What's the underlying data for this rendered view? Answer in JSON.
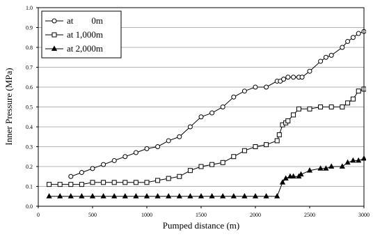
{
  "chart_data": {
    "type": "line",
    "title": "",
    "xlabel": "Pumped distance (m)",
    "ylabel": "Inner Pressure (MPa)",
    "xlim": [
      0,
      3000
    ],
    "ylim": [
      0,
      1.0
    ],
    "x_ticks": [
      "0",
      "500",
      "1000",
      "1500",
      "2000",
      "2500",
      "3000"
    ],
    "y_ticks": [
      "0.0",
      "0.1",
      "0.2",
      "0.3",
      "0.4",
      "0.5",
      "0.6",
      "0.7",
      "0.8",
      "0.9",
      "1.0"
    ],
    "grid": "horizontal",
    "legend_position": "top-left",
    "series": [
      {
        "name": "at        0m",
        "marker": "circle-open",
        "color": "#000000",
        "points": [
          [
            300,
            0.15
          ],
          [
            400,
            0.17
          ],
          [
            500,
            0.19
          ],
          [
            600,
            0.21
          ],
          [
            700,
            0.23
          ],
          [
            800,
            0.25
          ],
          [
            900,
            0.27
          ],
          [
            1000,
            0.29
          ],
          [
            1100,
            0.3
          ],
          [
            1200,
            0.33
          ],
          [
            1300,
            0.35
          ],
          [
            1400,
            0.4
          ],
          [
            1500,
            0.45
          ],
          [
            1600,
            0.47
          ],
          [
            1700,
            0.5
          ],
          [
            1800,
            0.55
          ],
          [
            1900,
            0.58
          ],
          [
            2000,
            0.6
          ],
          [
            2100,
            0.6
          ],
          [
            2200,
            0.63
          ],
          [
            2230,
            0.63
          ],
          [
            2260,
            0.64
          ],
          [
            2300,
            0.65
          ],
          [
            2350,
            0.65
          ],
          [
            2400,
            0.65
          ],
          [
            2430,
            0.65
          ],
          [
            2500,
            0.68
          ],
          [
            2600,
            0.73
          ],
          [
            2650,
            0.75
          ],
          [
            2700,
            0.76
          ],
          [
            2800,
            0.8
          ],
          [
            2850,
            0.83
          ],
          [
            2900,
            0.85
          ],
          [
            2950,
            0.87
          ],
          [
            3000,
            0.88
          ]
        ]
      },
      {
        "name": "at 1,000m",
        "marker": "square-open",
        "color": "#000000",
        "points": [
          [
            100,
            0.11
          ],
          [
            200,
            0.11
          ],
          [
            300,
            0.11
          ],
          [
            400,
            0.11
          ],
          [
            500,
            0.12
          ],
          [
            600,
            0.12
          ],
          [
            700,
            0.12
          ],
          [
            800,
            0.12
          ],
          [
            900,
            0.12
          ],
          [
            1000,
            0.12
          ],
          [
            1100,
            0.13
          ],
          [
            1200,
            0.14
          ],
          [
            1300,
            0.15
          ],
          [
            1400,
            0.18
          ],
          [
            1500,
            0.2
          ],
          [
            1600,
            0.21
          ],
          [
            1700,
            0.22
          ],
          [
            1800,
            0.25
          ],
          [
            1900,
            0.28
          ],
          [
            2000,
            0.3
          ],
          [
            2100,
            0.31
          ],
          [
            2200,
            0.33
          ],
          [
            2220,
            0.36
          ],
          [
            2250,
            0.41
          ],
          [
            2280,
            0.42
          ],
          [
            2300,
            0.43
          ],
          [
            2350,
            0.46
          ],
          [
            2400,
            0.49
          ],
          [
            2500,
            0.49
          ],
          [
            2600,
            0.5
          ],
          [
            2700,
            0.5
          ],
          [
            2800,
            0.5
          ],
          [
            2850,
            0.52
          ],
          [
            2900,
            0.54
          ],
          [
            2950,
            0.58
          ],
          [
            3000,
            0.59
          ]
        ]
      },
      {
        "name": "at 2,000m",
        "marker": "triangle-filled",
        "color": "#000000",
        "points": [
          [
            100,
            0.05
          ],
          [
            200,
            0.05
          ],
          [
            300,
            0.05
          ],
          [
            400,
            0.05
          ],
          [
            500,
            0.05
          ],
          [
            600,
            0.05
          ],
          [
            700,
            0.05
          ],
          [
            800,
            0.05
          ],
          [
            900,
            0.05
          ],
          [
            1000,
            0.05
          ],
          [
            1100,
            0.05
          ],
          [
            1200,
            0.05
          ],
          [
            1300,
            0.05
          ],
          [
            1400,
            0.05
          ],
          [
            1500,
            0.05
          ],
          [
            1600,
            0.05
          ],
          [
            1700,
            0.05
          ],
          [
            1800,
            0.05
          ],
          [
            1900,
            0.05
          ],
          [
            2000,
            0.05
          ],
          [
            2100,
            0.05
          ],
          [
            2200,
            0.05
          ],
          [
            2250,
            0.12
          ],
          [
            2280,
            0.14
          ],
          [
            2320,
            0.15
          ],
          [
            2350,
            0.15
          ],
          [
            2400,
            0.15
          ],
          [
            2420,
            0.16
          ],
          [
            2500,
            0.18
          ],
          [
            2600,
            0.19
          ],
          [
            2650,
            0.19
          ],
          [
            2700,
            0.2
          ],
          [
            2800,
            0.2
          ],
          [
            2850,
            0.22
          ],
          [
            2900,
            0.23
          ],
          [
            2950,
            0.23
          ],
          [
            3000,
            0.24
          ]
        ]
      }
    ]
  }
}
